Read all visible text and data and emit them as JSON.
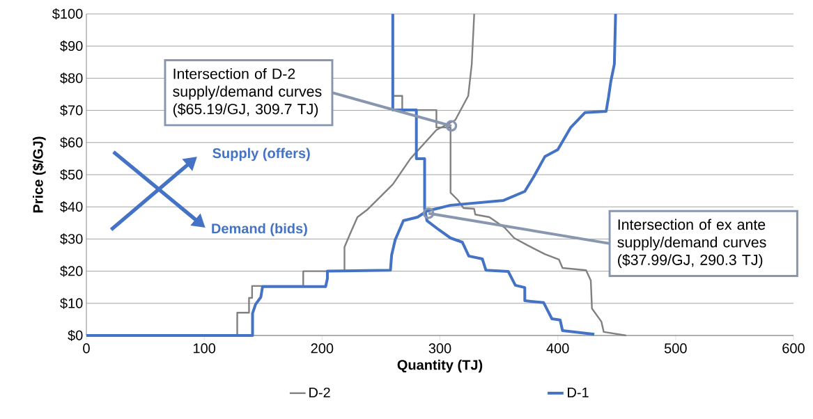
{
  "chart_data": {
    "type": "line",
    "xlabel": "Quantity (TJ)",
    "ylabel": "Price ($/GJ)",
    "xlim": [
      0,
      600
    ],
    "xticks": [
      0,
      100,
      200,
      300,
      400,
      500,
      600
    ],
    "ylim": [
      0,
      100
    ],
    "yticks": [
      {
        "value": 0,
        "label": "$0"
      },
      {
        "value": 10,
        "label": "$10"
      },
      {
        "value": 20,
        "label": "$20"
      },
      {
        "value": 30,
        "label": "$30"
      },
      {
        "value": 40,
        "label": "$40"
      },
      {
        "value": 50,
        "label": "$50"
      },
      {
        "value": 60,
        "label": "$60"
      },
      {
        "value": 70,
        "label": "$70"
      },
      {
        "value": 80,
        "label": "$80"
      },
      {
        "value": 90,
        "label": "$90"
      },
      {
        "value": 100,
        "label": "$100"
      }
    ],
    "grid": "y",
    "legend": "bottom",
    "marker": "none",
    "line_style": "solid",
    "series": [
      {
        "name": "D-2",
        "color": "#808080",
        "x": [
          0,
          128,
          128,
          138,
          138,
          140.6,
          140.6,
          184,
          184,
          219,
          219,
          224,
          230,
          238,
          248,
          260,
          275,
          297,
          313,
          324,
          327,
          329,
          329
        ],
        "values": [
          0,
          0,
          7.1,
          7.1,
          11.7,
          11.7,
          15.4,
          15.4,
          20,
          20,
          27.5,
          31.8,
          36.8,
          39,
          42.6,
          47,
          55,
          63.9,
          67,
          74.5,
          84.4,
          99.4,
          100
        ]
      },
      {
        "color": "#808080",
        "x": [
          260,
          268,
          268,
          297,
          297,
          309,
          309,
          315,
          320,
          329,
          330,
          342,
          355,
          363,
          374,
          389,
          401,
          404,
          424,
          428,
          429,
          437,
          439,
          458
        ],
        "values": [
          74.5,
          74.5,
          70.1,
          70.1,
          64.7,
          64.7,
          44.4,
          42.2,
          39.6,
          39.4,
          37.6,
          36.8,
          33.5,
          30.3,
          28.1,
          25.3,
          23.6,
          21,
          20.3,
          17.1,
          8.4,
          4.3,
          1.1,
          0
        ]
      },
      {
        "name": "D-1",
        "color": "#4472c4",
        "x": [
          0,
          141,
          141,
          143.6,
          148,
          149.5,
          203,
          204.5,
          204.5,
          258,
          259,
          262,
          269,
          281,
          289,
          309,
          354,
          372,
          380,
          389,
          400,
          411,
          423,
          441,
          443,
          445,
          448,
          449,
          449
        ],
        "values": [
          0,
          0,
          6.9,
          9.7,
          11.9,
          15.2,
          15.2,
          17.7,
          20,
          20.3,
          25,
          29.7,
          35.7,
          36.8,
          38.7,
          40.5,
          42,
          44.8,
          49.6,
          55.6,
          57.8,
          64.7,
          69.3,
          69.7,
          74,
          79,
          84.4,
          99.4,
          100
        ]
      },
      {
        "color": "#4472c4",
        "x": [
          260,
          260,
          280,
          280,
          287,
          287,
          289,
          299,
          309,
          319,
          324.5,
          336,
          339,
          358,
          364,
          372,
          372,
          388,
          395,
          402,
          404,
          431
        ],
        "values": [
          100,
          70.1,
          70.1,
          55,
          55,
          39.4,
          35.7,
          32.9,
          30.3,
          29,
          24.7,
          23.8,
          20.3,
          19.9,
          15.6,
          14.9,
          10.8,
          10.2,
          5.2,
          4.8,
          1.5,
          0.4
        ]
      }
    ],
    "annotations": [
      {
        "text": "Intersection of D-2 supply/demand curves ($65.19/GJ, 309.7 TJ)",
        "x": 309.7,
        "y": 65.19
      },
      {
        "text": "Intersection of ex ante supply/demand curves ($37.99/GJ, 290.3 TJ)",
        "x": 290.3,
        "y": 37.99
      },
      "Supply (offers)",
      "Demand (bids)"
    ]
  }
}
